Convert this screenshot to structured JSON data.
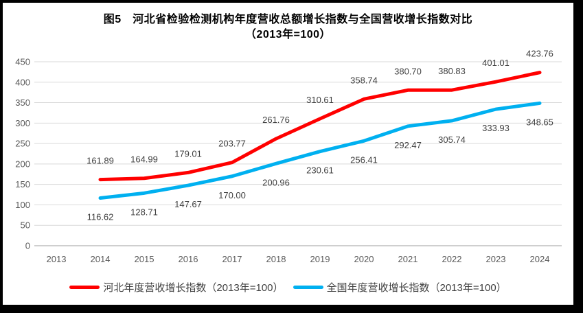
{
  "title": {
    "line1": "图5　河北省检验检测机构年度营收总额增长指数与全国营收增长指数对比",
    "line2": "（2013年=100）"
  },
  "chart_data": {
    "type": "line",
    "title": "图5 河北省检验检测机构年度营收总额增长指数与全国营收增长指数对比（2013年=100）",
    "categories": [
      "2013",
      "2014",
      "2015",
      "2016",
      "2017",
      "2018",
      "2019",
      "2020",
      "2021",
      "2022",
      "2023",
      "2024"
    ],
    "ylim": [
      0,
      450
    ],
    "ytick_step": 50,
    "yticks": [
      0,
      50,
      100,
      150,
      200,
      250,
      300,
      350,
      400,
      450
    ],
    "grid": "horizontal",
    "legend_position": "bottom",
    "data_label_format": "two-decimals",
    "series": [
      {
        "name": "河北年度营收增长指数（2013年=100）",
        "color": "#FF0000",
        "start_index": 1,
        "label_position": "above",
        "values": [
          161.89,
          164.99,
          179.01,
          203.77,
          261.76,
          310.61,
          358.74,
          380.7,
          380.83,
          401.01,
          423.76
        ]
      },
      {
        "name": "全国年度营收增长指数（2013年=100）",
        "color": "#00B0F0",
        "start_index": 1,
        "label_position": "below",
        "values": [
          116.62,
          128.71,
          147.67,
          170.0,
          200.96,
          230.61,
          256.41,
          292.47,
          305.74,
          333.93,
          348.65
        ]
      }
    ]
  },
  "colors": {
    "gridline": "#D9D9D9",
    "axis_line": "#BFBFBF",
    "tick_label": "#595959",
    "data_label": "#404040",
    "frame": "#000000",
    "background": "#FFFFFF"
  }
}
